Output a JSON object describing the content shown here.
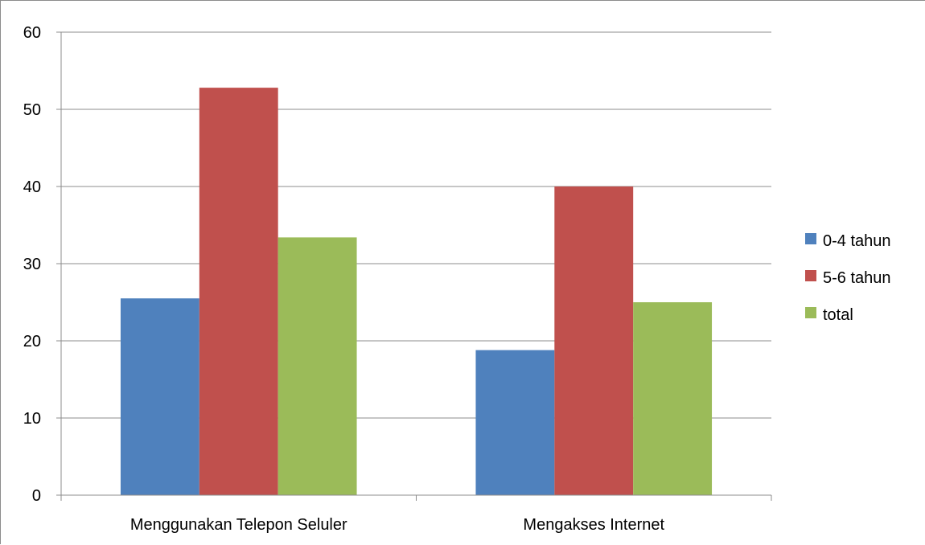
{
  "chart_data": {
    "type": "bar",
    "title": "",
    "xlabel": "",
    "ylabel": "",
    "categories": [
      "Menggunakan Telepon Seluler",
      "Mengakses Internet"
    ],
    "series": [
      {
        "name": "0-4 tahun",
        "color": "#4F81BD",
        "values": [
          25.5,
          18.8
        ]
      },
      {
        "name": "5-6 tahun",
        "color": "#C0504D",
        "values": [
          52.8,
          40.0
        ]
      },
      {
        "name": "total",
        "color": "#9BBB59",
        "values": [
          33.4,
          25.0
        ]
      }
    ],
    "ylim": [
      0,
      60
    ],
    "yticks": [
      "0",
      "10",
      "20",
      "30",
      "40",
      "50",
      "60"
    ],
    "grid": true,
    "legend_position": "right"
  }
}
